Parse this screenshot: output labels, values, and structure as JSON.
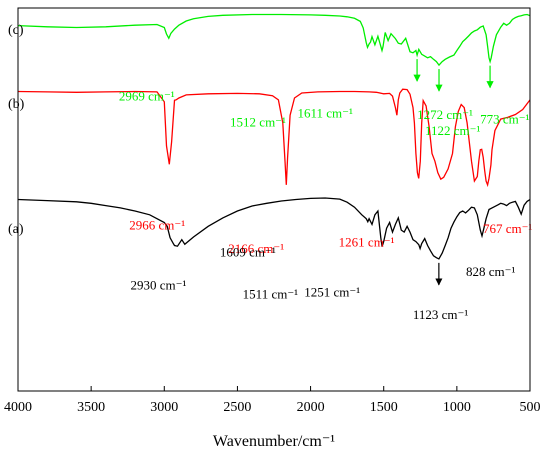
{
  "chart_data": {
    "type": "line",
    "xlabel": "Wavenumber/cm⁻¹",
    "xlim": [
      4000,
      500
    ],
    "x_reversed": true,
    "xticks": [
      4000,
      3500,
      3000,
      2500,
      2000,
      1500,
      1000,
      500
    ],
    "xtick_labels": [
      "4000",
      "3500",
      "3000",
      "2500",
      "2000",
      "1500",
      "1000",
      "500"
    ],
    "ylim": [
      0,
      1
    ],
    "y_axis_shown": false,
    "grid": false,
    "series": [
      {
        "name": "(c)",
        "color": "#00ee00",
        "offset": 0.72,
        "x": [
          4000,
          3800,
          3600,
          3400,
          3200,
          3050,
          3000,
          2985,
          2969,
          2955,
          2930,
          2900,
          2850,
          2800,
          2700,
          2600,
          2400,
          2200,
          2000,
          1900,
          1800,
          1750,
          1700,
          1660,
          1640,
          1620,
          1611,
          1600,
          1590,
          1580,
          1560,
          1540,
          1520,
          1512,
          1505,
          1490,
          1470,
          1450,
          1420,
          1400,
          1380,
          1350,
          1320,
          1300,
          1280,
          1272,
          1260,
          1240,
          1200,
          1180,
          1160,
          1140,
          1122,
          1100,
          1080,
          1050,
          1020,
          1000,
          980,
          960,
          940,
          920,
          900,
          880,
          860,
          840,
          820,
          800,
          790,
          780,
          773,
          765,
          750,
          730,
          700,
          680,
          660,
          640,
          620,
          600,
          580,
          560,
          540,
          520,
          500
        ],
        "y": [
          0.954,
          0.951,
          0.949,
          0.951,
          0.955,
          0.957,
          0.949,
          0.932,
          0.921,
          0.934,
          0.945,
          0.955,
          0.966,
          0.972,
          0.978,
          0.981,
          0.983,
          0.983,
          0.982,
          0.981,
          0.979,
          0.977,
          0.973,
          0.965,
          0.948,
          0.91,
          0.897,
          0.906,
          0.911,
          0.925,
          0.904,
          0.926,
          0.9,
          0.889,
          0.899,
          0.936,
          0.915,
          0.933,
          0.92,
          0.908,
          0.906,
          0.921,
          0.886,
          0.883,
          0.889,
          0.877,
          0.892,
          0.879,
          0.87,
          0.873,
          0.866,
          0.86,
          0.851,
          0.86,
          0.866,
          0.872,
          0.877,
          0.889,
          0.9,
          0.912,
          0.919,
          0.927,
          0.935,
          0.94,
          0.943,
          0.95,
          0.953,
          0.93,
          0.9,
          0.87,
          0.86,
          0.87,
          0.9,
          0.93,
          0.95,
          0.96,
          0.955,
          0.96,
          0.97,
          0.975,
          0.978,
          0.98,
          0.982,
          0.983,
          0.98
        ],
        "annotations": [
          {
            "text": "2969 cm⁻¹",
            "x": 2969
          },
          {
            "text": "1611 cm⁻¹",
            "x": 1611
          },
          {
            "text": "1512 cm⁻¹",
            "x": 1512
          },
          {
            "text": "1272 cm⁻¹",
            "x": 1272
          },
          {
            "text": "1122 cm⁻¹",
            "x": 1122
          },
          {
            "text": "773 cm⁻¹",
            "x": 773
          }
        ]
      },
      {
        "name": "(b)",
        "color": "#ff0000",
        "offset": 0.38,
        "x": [
          4000,
          3800,
          3600,
          3400,
          3200,
          3050,
          3000,
          2985,
          2966,
          2950,
          2930,
          2920,
          2900,
          2850,
          2700,
          2500,
          2350,
          2260,
          2220,
          2190,
          2175,
          2166,
          2157,
          2140,
          2110,
          2060,
          1950,
          1800,
          1700,
          1600,
          1550,
          1500,
          1460,
          1440,
          1420,
          1410,
          1400,
          1390,
          1370,
          1340,
          1320,
          1300,
          1290,
          1280,
          1270,
          1261,
          1250,
          1240,
          1230,
          1210,
          1190,
          1170,
          1150,
          1130,
          1110,
          1090,
          1060,
          1030,
          1010,
          990,
          970,
          950,
          930,
          900,
          880,
          860,
          850,
          840,
          830,
          820,
          810,
          800,
          790,
          780,
          767,
          760,
          740,
          700,
          650,
          600,
          550,
          500
        ],
        "y": [
          0.782,
          0.781,
          0.78,
          0.781,
          0.782,
          0.781,
          0.755,
          0.64,
          0.592,
          0.65,
          0.759,
          0.76,
          0.765,
          0.773,
          0.776,
          0.777,
          0.776,
          0.771,
          0.76,
          0.7,
          0.6,
          0.538,
          0.61,
          0.72,
          0.765,
          0.778,
          0.781,
          0.782,
          0.782,
          0.781,
          0.78,
          0.776,
          0.777,
          0.77,
          0.74,
          0.72,
          0.76,
          0.778,
          0.788,
          0.787,
          0.775,
          0.74,
          0.7,
          0.62,
          0.57,
          0.555,
          0.6,
          0.7,
          0.758,
          0.744,
          0.69,
          0.62,
          0.6,
          0.57,
          0.553,
          0.558,
          0.58,
          0.62,
          0.69,
          0.73,
          0.748,
          0.74,
          0.7,
          0.6,
          0.548,
          0.56,
          0.6,
          0.63,
          0.631,
          0.61,
          0.575,
          0.548,
          0.538,
          0.555,
          0.59,
          0.63,
          0.68,
          0.71,
          0.715,
          0.722,
          0.735,
          0.76
        ],
        "annotations": [
          {
            "text": "2966 cm⁻¹",
            "x": 2966
          },
          {
            "text": "2166 cm⁻¹",
            "x": 2166
          },
          {
            "text": "1261 cm⁻¹",
            "x": 1261
          },
          {
            "text": "767 cm⁻¹",
            "x": 767
          }
        ]
      },
      {
        "name": "(a)",
        "color": "#000000",
        "offset": 0.0,
        "x": [
          4000,
          3800,
          3600,
          3500,
          3400,
          3300,
          3200,
          3100,
          3050,
          3000,
          2980,
          2960,
          2940,
          2930,
          2910,
          2880,
          2860,
          2800,
          2700,
          2600,
          2500,
          2400,
          2300,
          2200,
          2100,
          2000,
          1900,
          1800,
          1750,
          1700,
          1650,
          1620,
          1609,
          1600,
          1580,
          1560,
          1540,
          1520,
          1511,
          1500,
          1480,
          1460,
          1440,
          1420,
          1400,
          1380,
          1360,
          1340,
          1320,
          1300,
          1280,
          1260,
          1251,
          1240,
          1220,
          1200,
          1180,
          1160,
          1140,
          1123,
          1100,
          1080,
          1060,
          1040,
          1020,
          1000,
          980,
          960,
          940,
          920,
          900,
          880,
          860,
          840,
          828,
          815,
          800,
          780,
          760,
          740,
          720,
          700,
          680,
          660,
          640,
          620,
          600,
          580,
          560,
          540,
          520,
          500
        ],
        "y": [
          0.5,
          0.497,
          0.494,
          0.49,
          0.484,
          0.478,
          0.47,
          0.46,
          0.45,
          0.44,
          0.43,
          0.4,
          0.386,
          0.38,
          0.378,
          0.395,
          0.383,
          0.402,
          0.43,
          0.452,
          0.47,
          0.483,
          0.49,
          0.496,
          0.5,
          0.503,
          0.504,
          0.501,
          0.493,
          0.48,
          0.46,
          0.45,
          0.442,
          0.45,
          0.435,
          0.46,
          0.47,
          0.4,
          0.377,
          0.39,
          0.425,
          0.44,
          0.415,
          0.435,
          0.452,
          0.42,
          0.415,
          0.43,
          0.415,
          0.395,
          0.39,
          0.382,
          0.372,
          0.385,
          0.398,
          0.38,
          0.366,
          0.353,
          0.348,
          0.345,
          0.36,
          0.38,
          0.4,
          0.425,
          0.441,
          0.455,
          0.466,
          0.47,
          0.465,
          0.472,
          0.48,
          0.478,
          0.46,
          0.42,
          0.405,
          0.425,
          0.45,
          0.474,
          0.478,
          0.482,
          0.486,
          0.49,
          0.488,
          0.484,
          0.49,
          0.493,
          0.495,
          0.48,
          0.462,
          0.485,
          0.495,
          0.5
        ],
        "annotations": [
          {
            "text": "2930 cm⁻¹",
            "x": 2930
          },
          {
            "text": "1609 cm⁻¹",
            "x": 1609
          },
          {
            "text": "1511 cm⁻¹",
            "x": 1511
          },
          {
            "text": "1251 cm⁻¹",
            "x": 1251
          },
          {
            "text": "1123 cm⁻¹",
            "x": 1123
          },
          {
            "text": "828 cm⁻¹",
            "x": 828
          }
        ]
      }
    ]
  }
}
